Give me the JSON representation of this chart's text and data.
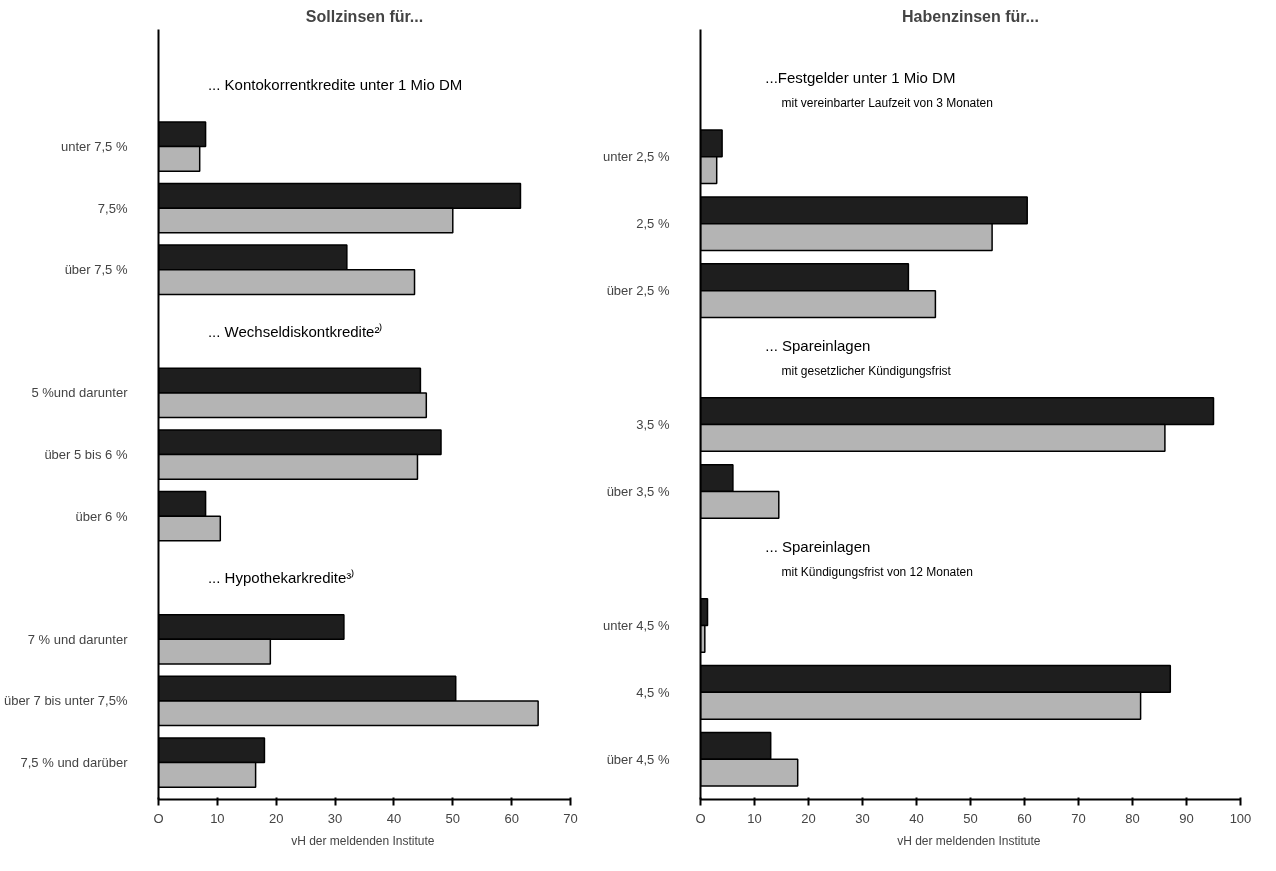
{
  "chart_data": [
    {
      "type": "bar",
      "orientation": "horizontal",
      "title": "Sollzinsen für...",
      "xlabel": "vH  der meldenden Institute",
      "categories": [
        null,
        "unter 7,5 %",
        "7,5%",
        "über 7,5 %",
        null,
        "5 %und darunter",
        "über 5 bis 6 %",
        "über 6 %",
        null,
        "7 % und darunter",
        "über 7 bis unter 7,5%",
        "7,5 % und darüber"
      ],
      "series": [
        {
          "color": "#1e1e1e",
          "values": [
            null,
            8,
            61.5,
            32,
            null,
            44.5,
            48,
            8,
            null,
            31.5,
            50.5,
            18
          ]
        },
        {
          "color": "#b4b4b4",
          "values": [
            null,
            7,
            50,
            43.5,
            null,
            45.5,
            44,
            10.5,
            null,
            19,
            64.5,
            16.5
          ]
        }
      ],
      "xlim": [
        0,
        70
      ],
      "xticks": [
        {
          "value": 0,
          "label": "O"
        },
        10,
        20,
        30,
        40,
        50,
        60,
        70
      ],
      "annotations": [
        "... Kontokorrentkredite unter 1 Mio DM",
        "... Wechseldiskontkredite²⁾",
        "... Hypothekarkredite³⁾"
      ]
    },
    {
      "type": "bar",
      "orientation": "horizontal",
      "title": "Habenzinsen für...",
      "xlabel": "vH  der meldenden Institute",
      "categories": [
        null,
        "unter 2,5 %",
        "2,5 %",
        "über 2,5 %",
        null,
        "3,5 %",
        "über 3,5 %",
        null,
        "unter 4,5 %",
        "4,5 %",
        "über 4,5 %"
      ],
      "series": [
        {
          "color": "#1e1e1e",
          "values": [
            null,
            4,
            60.5,
            38.5,
            null,
            95,
            6,
            null,
            1.3,
            87,
            13
          ]
        },
        {
          "color": "#b4b4b4",
          "values": [
            null,
            3,
            54,
            43.5,
            null,
            86,
            14.5,
            null,
            0.8,
            81.5,
            18
          ]
        }
      ],
      "xlim": [
        0,
        100
      ],
      "xticks": [
        {
          "value": 0,
          "label": "O"
        },
        10,
        20,
        30,
        40,
        50,
        60,
        70,
        80,
        90,
        100
      ],
      "annotations": [
        "...Festgelder unter 1 Mio DM\nmit vereinbarter Laufzeit von 3 Monaten",
        "... Spareinlagen\nmit gesetzlicher Kündigungsfrist",
        "... Spareinlagen\nmit Kündigungsfrist von 12 Monaten"
      ]
    }
  ]
}
